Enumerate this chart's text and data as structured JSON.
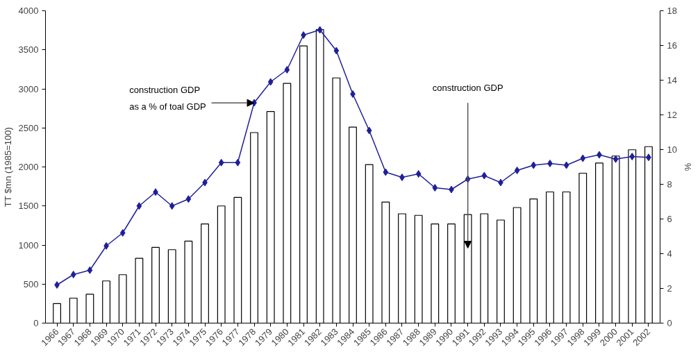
{
  "chart_data": {
    "type": "bar",
    "categories": [
      "1966",
      "1967",
      "1968",
      "1969",
      "1970",
      "1971",
      "1972",
      "1973",
      "1974",
      "1975",
      "1976",
      "1977",
      "1978",
      "1979",
      "1980",
      "1981",
      "1982",
      "1983",
      "1984",
      "1985",
      "1986",
      "1987",
      "1988",
      "1989",
      "1990",
      "1991",
      "1992",
      "1993",
      "1994",
      "1995",
      "1996",
      "1997",
      "1998",
      "1999",
      "2000",
      "2001",
      "2002"
    ],
    "ylabel": "TT $mn (1985=100)",
    "y2label": "%",
    "ylim": [
      0,
      4000
    ],
    "yticks": [
      0,
      500,
      1000,
      1500,
      2000,
      2500,
      3000,
      3500,
      4000
    ],
    "y2lim": [
      0,
      18
    ],
    "y2ticks": [
      0,
      2,
      4,
      6,
      8,
      10,
      12,
      14,
      16,
      18
    ],
    "grid": false,
    "series": [
      {
        "color": "#ffffff",
        "values": [
          250,
          320,
          370,
          540,
          620,
          830,
          970,
          940,
          1050,
          1270,
          1500,
          1610,
          2440,
          2710,
          3070,
          3550,
          3760,
          3140,
          2510,
          2030,
          1550,
          1400,
          1380,
          1270,
          1270,
          1390,
          1400,
          1320,
          1480,
          1590,
          1680,
          1680,
          1920,
          2050,
          2140,
          2220,
          2260
        ]
      },
      {
        "type": "line",
        "axis": "y2",
        "color": "#1f1f99",
        "marker": "diamond",
        "line_style": "solid",
        "values": [
          2.2,
          2.8,
          3.05,
          4.45,
          5.2,
          6.75,
          7.55,
          6.75,
          7.15,
          8.1,
          9.25,
          9.25,
          12.7,
          13.9,
          14.6,
          16.6,
          16.9,
          15.7,
          13.2,
          11.1,
          8.7,
          8.4,
          8.6,
          7.8,
          7.7,
          8.3,
          8.5,
          8.1,
          8.8,
          9.1,
          9.2,
          9.1,
          9.5,
          9.7,
          9.45,
          9.6,
          9.55
        ]
      }
    ],
    "annotations": [
      {
        "text": "construction GDP\nas  a % of toal GDP",
        "x": "1978",
        "y": 2820
      },
      {
        "text": "construction GDP",
        "x": "1991",
        "y": 960
      }
    ]
  }
}
